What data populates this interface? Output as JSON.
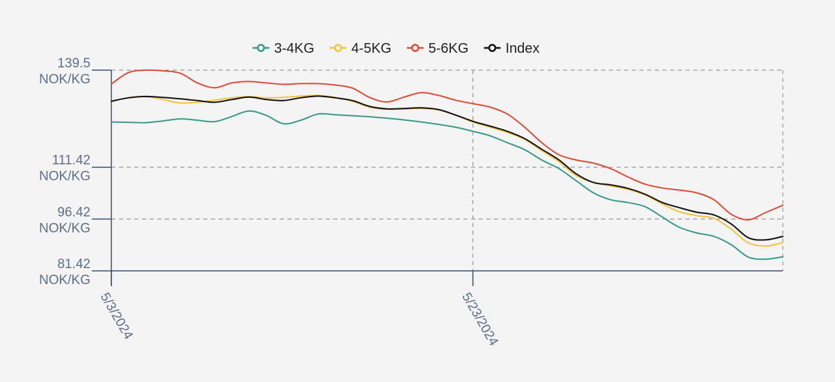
{
  "chart_data": {
    "type": "line",
    "x_labels": [
      "5/3/2024",
      "5/23/2024"
    ],
    "y_ticks": [
      {
        "value": 139.5,
        "line1": "139.5",
        "line2": "NOK/KG"
      },
      {
        "value": 111.42,
        "line1": "111.42",
        "line2": "NOK/KG"
      },
      {
        "value": 96.42,
        "line1": "96.42",
        "line2": "NOK/KG"
      },
      {
        "value": 81.42,
        "line1": "81.42",
        "line2": "NOK/KG"
      }
    ],
    "ylim": [
      81.42,
      139.5
    ],
    "x_count": 40,
    "x_tick_index": [
      0,
      21
    ],
    "grid": "dashed",
    "legend_position": "top",
    "series": [
      {
        "name": "3-4KG",
        "color": "#3a9a8a",
        "values": [
          124.5,
          124.4,
          124.3,
          124.8,
          125.4,
          125.0,
          124.6,
          126.1,
          127.7,
          126.4,
          124.0,
          125.0,
          126.8,
          126.6,
          126.3,
          126.0,
          125.6,
          125.1,
          124.5,
          123.8,
          123.0,
          121.8,
          120.5,
          118.5,
          116.5,
          113.5,
          111.0,
          107.5,
          104.0,
          102.0,
          101.2,
          100.0,
          97.0,
          94.0,
          92.4,
          91.4,
          89.0,
          85.4,
          84.8,
          85.5
        ]
      },
      {
        "name": "4-5KG",
        "color": "#f2c340",
        "values": [
          130.5,
          131.5,
          131.8,
          131.0,
          130.0,
          130.2,
          130.8,
          131.5,
          131.8,
          131.5,
          131.6,
          132.0,
          132.2,
          131.6,
          130.5,
          128.8,
          128.2,
          128.3,
          128.4,
          128.0,
          126.5,
          124.5,
          123.0,
          121.5,
          119.5,
          116.2,
          113.0,
          109.0,
          107.0,
          106.0,
          105.0,
          103.4,
          100.8,
          98.5,
          97.4,
          96.6,
          93.5,
          89.5,
          88.6,
          89.6
        ]
      },
      {
        "name": "5-6KG",
        "color": "#dd4b39",
        "values": [
          135.5,
          138.8,
          139.5,
          139.3,
          138.6,
          135.8,
          134.4,
          135.8,
          136.2,
          135.8,
          135.4,
          135.6,
          135.6,
          135.2,
          134.3,
          131.6,
          130.3,
          131.7,
          133.0,
          132.2,
          130.8,
          129.8,
          128.8,
          126.8,
          123.0,
          118.5,
          115.0,
          113.5,
          112.6,
          111.0,
          108.6,
          106.5,
          105.4,
          104.8,
          104.0,
          102.0,
          97.8,
          96.2,
          98.3,
          100.4
        ]
      },
      {
        "name": "Index",
        "color": "#111111",
        "values": [
          130.5,
          131.5,
          131.9,
          131.6,
          131.2,
          130.7,
          130.2,
          131.0,
          131.7,
          131.0,
          130.7,
          131.5,
          132.0,
          131.5,
          130.7,
          129.0,
          128.3,
          128.4,
          128.6,
          128.1,
          126.5,
          124.7,
          123.3,
          121.8,
          119.7,
          116.6,
          113.5,
          109.5,
          107.0,
          106.3,
          105.3,
          103.6,
          101.2,
          99.7,
          98.4,
          97.6,
          95.0,
          91.0,
          90.4,
          91.4
        ]
      }
    ]
  }
}
